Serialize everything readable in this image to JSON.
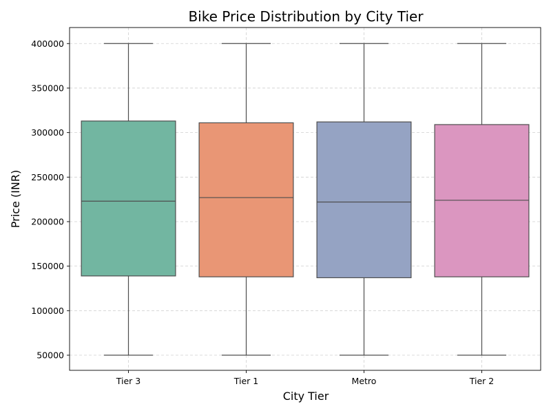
{
  "chart_data": {
    "type": "box",
    "title": "Bike Price Distribution by City Tier",
    "xlabel": "City Tier",
    "ylabel": "Price (INR)",
    "ylim": [
      33000,
      418000
    ],
    "yticks": [
      50000,
      100000,
      150000,
      200000,
      250000,
      300000,
      350000,
      400000
    ],
    "ytick_labels": [
      "50000",
      "100000",
      "150000",
      "200000",
      "250000",
      "300000",
      "350000",
      "400000"
    ],
    "grid": true,
    "categories": [
      "Tier 3",
      "Tier 1",
      "Metro",
      "Tier 2"
    ],
    "boxes": [
      {
        "category": "Tier 3",
        "min": 50000,
        "q1": 139000,
        "median": 223000,
        "q3": 313000,
        "max": 400000,
        "color": "#72b6a1"
      },
      {
        "category": "Tier 1",
        "min": 50000,
        "q1": 138000,
        "median": 227000,
        "q3": 311000,
        "max": 400000,
        "color": "#e99675"
      },
      {
        "category": "Metro",
        "min": 50000,
        "q1": 137000,
        "median": 222000,
        "q3": 312000,
        "max": 400000,
        "color": "#95a3c3"
      },
      {
        "category": "Tier 2",
        "min": 50000,
        "q1": 138000,
        "median": 224000,
        "q3": 309000,
        "max": 400000,
        "color": "#db96c0"
      }
    ]
  }
}
